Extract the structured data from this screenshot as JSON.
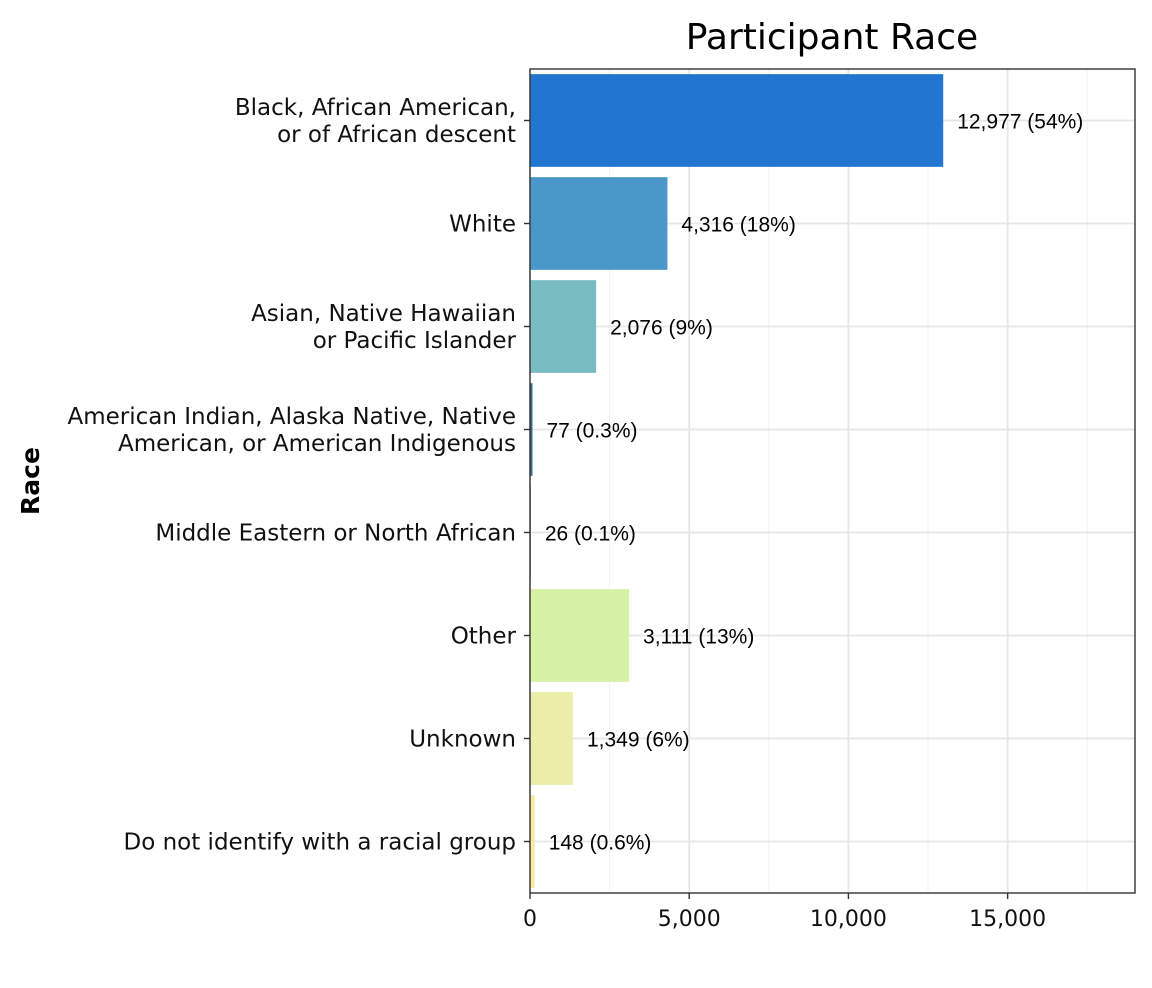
{
  "chart_data": {
    "type": "bar",
    "orientation": "horizontal",
    "title": "Participant Race",
    "ylabel": "Race",
    "xlabel": "",
    "xlim": [
      0,
      19000
    ],
    "xticks": [
      0,
      5000,
      10000,
      15000
    ],
    "xtick_labels": [
      "0",
      "5,000",
      "10,000",
      "15,000"
    ],
    "grid": true,
    "legend": "none",
    "categories": [
      [
        "Black, African American,",
        "or of African descent"
      ],
      [
        "White"
      ],
      [
        "Asian, Native Hawaiian",
        "or Pacific Islander"
      ],
      [
        "American Indian, Alaska Native, Native",
        "American, or American Indigenous"
      ],
      [
        "Middle Eastern or North African"
      ],
      [
        "Other"
      ],
      [
        "Unknown"
      ],
      [
        "Do not identify with a racial group"
      ]
    ],
    "values": [
      12977,
      4316,
      2076,
      77,
      26,
      3111,
      1349,
      148
    ],
    "data_labels": [
      "12,977 (54%)",
      "4,316 (18%)",
      "2,076 (9%)",
      "77 (0.3%)",
      "26 (0.1%)",
      "3,111 (13%)",
      "1,349 (6%)",
      "148 (0.6%)"
    ],
    "colors": [
      "#2176d2",
      "#4a98c9",
      "#78bcc2",
      "#2f6e8c",
      "#5aa8b8",
      "#d7f1a7",
      "#ebeea6",
      "#f6eb9e"
    ]
  }
}
